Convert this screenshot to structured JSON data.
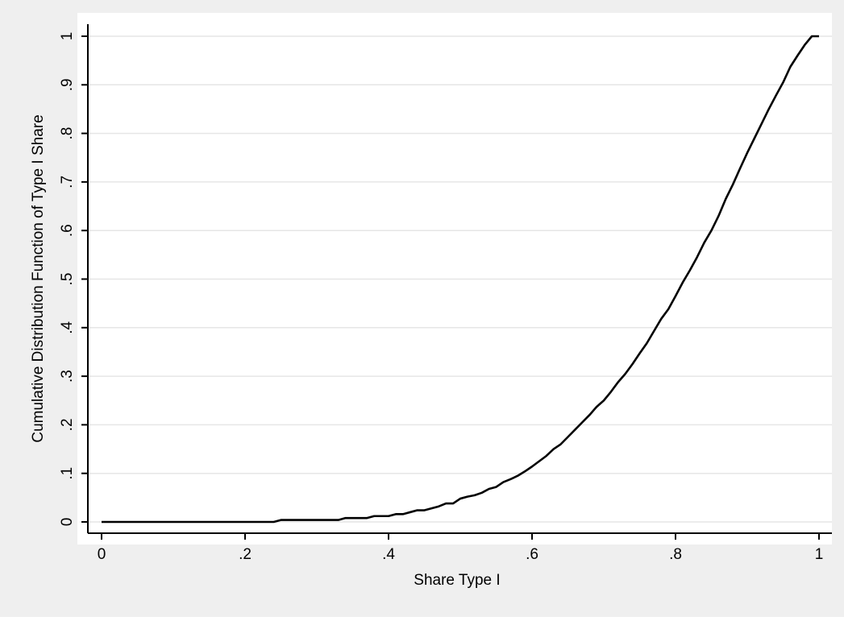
{
  "chart_data": {
    "type": "line",
    "title": "",
    "xlabel": "Share Type I",
    "ylabel": "Cumulative Distribution Function of Type I Share",
    "xlim": [
      0,
      1
    ],
    "ylim": [
      0,
      1
    ],
    "x_ticks": [
      0,
      0.2,
      0.4,
      0.6,
      0.8,
      1
    ],
    "x_tick_labels": [
      "0",
      ".2",
      ".4",
      ".6",
      ".8",
      "1"
    ],
    "y_ticks": [
      0,
      0.1,
      0.2,
      0.3,
      0.4,
      0.5,
      0.6,
      0.7,
      0.8,
      0.9,
      1
    ],
    "y_tick_labels": [
      "0",
      ".1",
      ".2",
      ".3",
      ".4",
      ".5",
      ".6",
      ".7",
      ".8",
      ".9",
      "1"
    ],
    "grid": "horizontal",
    "legend": "none",
    "colors": {
      "outer_background": "#efefef",
      "plot_background": "#ffffff",
      "gridline": "#e6e6e6",
      "line": "#000000",
      "axis": "#000000"
    },
    "series": [
      {
        "x": [
          0,
          0.1,
          0.2,
          0.24,
          0.25,
          0.3,
          0.33,
          0.34,
          0.37,
          0.38,
          0.4,
          0.41,
          0.42,
          0.43,
          0.44,
          0.45,
          0.46,
          0.47,
          0.48,
          0.49,
          0.5,
          0.51,
          0.52,
          0.53,
          0.54,
          0.55,
          0.56,
          0.57,
          0.58,
          0.59,
          0.6,
          0.61,
          0.62,
          0.63,
          0.64,
          0.65,
          0.66,
          0.67,
          0.68,
          0.69,
          0.7,
          0.71,
          0.72,
          0.73,
          0.74,
          0.75,
          0.76,
          0.77,
          0.78,
          0.79,
          0.8,
          0.81,
          0.82,
          0.83,
          0.84,
          0.85,
          0.86,
          0.87,
          0.88,
          0.89,
          0.9,
          0.91,
          0.92,
          0.93,
          0.94,
          0.95,
          0.96,
          0.97,
          0.98,
          0.99,
          1.0
        ],
        "y": [
          0,
          0,
          0,
          0,
          0.004,
          0.004,
          0.004,
          0.008,
          0.008,
          0.012,
          0.012,
          0.016,
          0.016,
          0.02,
          0.024,
          0.024,
          0.028,
          0.032,
          0.038,
          0.038,
          0.048,
          0.052,
          0.055,
          0.06,
          0.068,
          0.072,
          0.082,
          0.088,
          0.095,
          0.104,
          0.114,
          0.125,
          0.136,
          0.15,
          0.16,
          0.175,
          0.19,
          0.205,
          0.22,
          0.237,
          0.25,
          0.268,
          0.288,
          0.305,
          0.325,
          0.347,
          0.368,
          0.393,
          0.418,
          0.438,
          0.465,
          0.493,
          0.518,
          0.545,
          0.575,
          0.6,
          0.63,
          0.665,
          0.695,
          0.728,
          0.76,
          0.79,
          0.82,
          0.85,
          0.878,
          0.905,
          0.937,
          0.96,
          0.982,
          1.0,
          1.0
        ]
      }
    ]
  }
}
